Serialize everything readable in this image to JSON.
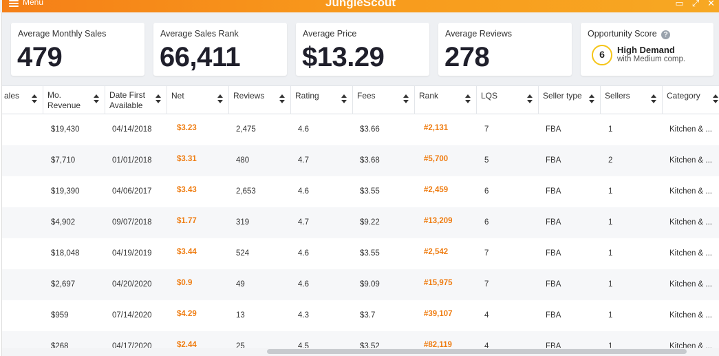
{
  "window": {
    "menu_label": "Menu",
    "brand": "JungleScout",
    "controls": [
      "▭",
      "⤢",
      "✕"
    ]
  },
  "summary": {
    "avg_monthly_sales": {
      "label": "Average Monthly Sales",
      "value": "479"
    },
    "avg_sales_rank": {
      "label": "Average Sales Rank",
      "value": "66,411"
    },
    "avg_price": {
      "label": "Average Price",
      "value": "$13.29"
    },
    "avg_reviews": {
      "label": "Average Reviews",
      "value": "278"
    },
    "opportunity": {
      "label": "Opportunity Score",
      "help": "?",
      "score": "6",
      "title": "High Demand",
      "subtitle": "with Medium comp."
    }
  },
  "table": {
    "headers": [
      {
        "line1": "ales",
        "line2": ""
      },
      {
        "line1": "Mo.",
        "line2": "Revenue"
      },
      {
        "line1": "Date First",
        "line2": "Available"
      },
      {
        "line1": "Net",
        "line2": ""
      },
      {
        "line1": "Reviews",
        "line2": ""
      },
      {
        "line1": "Rating",
        "line2": ""
      },
      {
        "line1": "Fees",
        "line2": ""
      },
      {
        "line1": "Rank",
        "line2": ""
      },
      {
        "line1": "LQS",
        "line2": ""
      },
      {
        "line1": "Seller type",
        "line2": ""
      },
      {
        "line1": "Sellers",
        "line2": ""
      },
      {
        "line1": "Category",
        "line2": ""
      }
    ],
    "rows": [
      {
        "revenue": "$19,430",
        "date": "04/14/2018",
        "net": "$3.23",
        "reviews": "2,475",
        "rating": "4.6",
        "fees": "$3.66",
        "rank": "#2,131",
        "lqs": "7",
        "seller_type": "FBA",
        "sellers": "1",
        "category": "Kitchen & ..."
      },
      {
        "revenue": "$7,710",
        "date": "01/01/2018",
        "net": "$3.31",
        "reviews": "480",
        "rating": "4.7",
        "fees": "$3.68",
        "rank": "#5,700",
        "lqs": "5",
        "seller_type": "FBA",
        "sellers": "2",
        "category": "Kitchen & ..."
      },
      {
        "revenue": "$19,390",
        "date": "04/06/2017",
        "net": "$3.43",
        "reviews": "2,653",
        "rating": "4.6",
        "fees": "$3.55",
        "rank": "#2,459",
        "lqs": "6",
        "seller_type": "FBA",
        "sellers": "1",
        "category": "Kitchen & ..."
      },
      {
        "revenue": "$4,902",
        "date": "09/07/2018",
        "net": "$1.77",
        "reviews": "319",
        "rating": "4.7",
        "fees": "$9.22",
        "rank": "#13,209",
        "lqs": "6",
        "seller_type": "FBA",
        "sellers": "1",
        "category": "Kitchen & ..."
      },
      {
        "revenue": "$18,048",
        "date": "04/19/2019",
        "net": "$3.44",
        "reviews": "524",
        "rating": "4.6",
        "fees": "$3.55",
        "rank": "#2,542",
        "lqs": "7",
        "seller_type": "FBA",
        "sellers": "1",
        "category": "Kitchen & ..."
      },
      {
        "revenue": "$2,697",
        "date": "04/20/2020",
        "net": "$0.9",
        "reviews": "49",
        "rating": "4.6",
        "fees": "$9.09",
        "rank": "#15,975",
        "lqs": "7",
        "seller_type": "FBA",
        "sellers": "1",
        "category": "Kitchen & ..."
      },
      {
        "revenue": "$959",
        "date": "07/14/2020",
        "net": "$4.29",
        "reviews": "13",
        "rating": "4.3",
        "fees": "$3.7",
        "rank": "#39,107",
        "lqs": "4",
        "seller_type": "FBA",
        "sellers": "1",
        "category": "Kitchen & ..."
      },
      {
        "revenue": "$268",
        "date": "04/17/2020",
        "net": "$2.44",
        "reviews": "25",
        "rating": "4.5",
        "fees": "$3.52",
        "rank": "#82,119",
        "lqs": "4",
        "seller_type": "FBA",
        "sellers": "1",
        "category": "Kitchen & ..."
      }
    ]
  },
  "colors": {
    "accent": "#f58220",
    "net_rank": "#ef7d12",
    "score_ring": "#f5c518"
  }
}
